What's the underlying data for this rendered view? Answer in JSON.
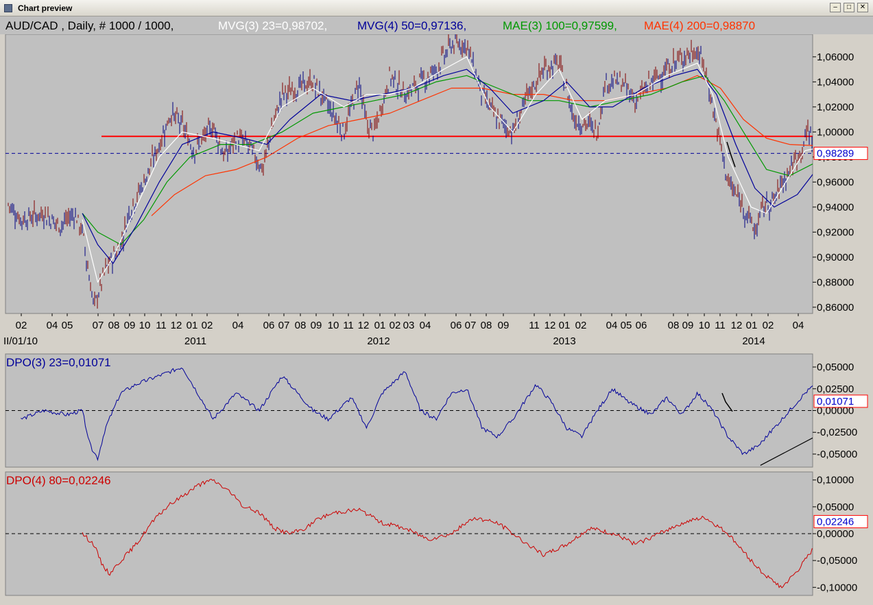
{
  "window": {
    "title": "Chart preview",
    "buttons": {
      "minimize": "–",
      "maximize": "□",
      "close": "✕"
    }
  },
  "chart_data": [
    {
      "type": "line",
      "panel": "price",
      "header": {
        "symbol": "AUD/CAD , Daily, # 1000 / 1000,",
        "legend": [
          {
            "text": "MVG(3) 23=0,98702,",
            "color": "#ffffff"
          },
          {
            "text": "MVG(4) 50=0,97136,",
            "color": "#000099"
          },
          {
            "text": "MAE(3) 100=0,97599,",
            "color": "#009900"
          },
          {
            "text": "MAE(4) 200=0,98870",
            "color": "#ff3300"
          }
        ]
      },
      "ylim": [
        0.855,
        1.078
      ],
      "yticks": [
        "1,06000",
        "1,04000",
        "1,02000",
        "1,00000",
        "0,98000",
        "0,96000",
        "0,94000",
        "0,92000",
        "0,90000",
        "0,88000",
        "0,86000"
      ],
      "current_value": "0,98289",
      "current_y": 0.98289,
      "support_level": 0.9965,
      "x_labels": [
        "02",
        "04",
        "05",
        "07",
        "08",
        "09",
        "10",
        "11",
        "12",
        "01",
        "02",
        "04",
        "06",
        "07",
        "08",
        "09",
        "10",
        "11",
        "12",
        "01",
        "02",
        "03",
        "04",
        "06",
        "07",
        "08",
        "09",
        "11",
        "12",
        "01",
        "02",
        "04",
        "05",
        "06",
        "08",
        "09",
        "10",
        "11",
        "12",
        "01",
        "02",
        "04"
      ],
      "year_labels": [
        "II/01/10",
        "2011",
        "2012",
        "2013",
        "2014"
      ],
      "price_path": [
        [
          0.0,
          0.945
        ],
        [
          0.02,
          0.93
        ],
        [
          0.05,
          0.935
        ],
        [
          0.07,
          0.925
        ],
        [
          0.09,
          0.935
        ],
        [
          0.1,
          0.92
        ],
        [
          0.11,
          0.88
        ],
        [
          0.115,
          0.86
        ],
        [
          0.12,
          0.87
        ],
        [
          0.13,
          0.89
        ],
        [
          0.14,
          0.9
        ],
        [
          0.15,
          0.91
        ],
        [
          0.16,
          0.935
        ],
        [
          0.18,
          0.96
        ],
        [
          0.2,
          0.99
        ],
        [
          0.215,
          1.015
        ],
        [
          0.23,
          1.005
        ],
        [
          0.245,
          0.985
        ],
        [
          0.27,
          1.005
        ],
        [
          0.285,
          0.98
        ],
        [
          0.3,
          0.995
        ],
        [
          0.315,
          0.99
        ],
        [
          0.325,
          0.98
        ],
        [
          0.335,
          0.97
        ],
        [
          0.345,
          1.0
        ],
        [
          0.36,
          1.03
        ],
        [
          0.38,
          1.035
        ],
        [
          0.4,
          1.04
        ],
        [
          0.42,
          1.02
        ],
        [
          0.44,
          1.0
        ],
        [
          0.46,
          1.04
        ],
        [
          0.47,
          1.005
        ],
        [
          0.48,
          1.0
        ],
        [
          0.5,
          1.045
        ],
        [
          0.52,
          1.03
        ],
        [
          0.54,
          1.04
        ],
        [
          0.56,
          1.05
        ],
        [
          0.58,
          1.07
        ],
        [
          0.6,
          1.07
        ],
        [
          0.62,
          1.03
        ],
        [
          0.64,
          1.01
        ],
        [
          0.66,
          1.0
        ],
        [
          0.68,
          1.03
        ],
        [
          0.7,
          1.05
        ],
        [
          0.72,
          1.055
        ],
        [
          0.74,
          1.01
        ],
        [
          0.76,
          1.005
        ],
        [
          0.77,
          1.0
        ],
        [
          0.78,
          1.04
        ],
        [
          0.8,
          1.04
        ],
        [
          0.82,
          1.025
        ],
        [
          0.84,
          1.04
        ],
        [
          0.86,
          1.05
        ],
        [
          0.88,
          1.06
        ],
        [
          0.9,
          1.065
        ],
        [
          0.91,
          1.05
        ],
        [
          0.92,
          1.02
        ],
        [
          0.93,
          0.99
        ],
        [
          0.94,
          0.96
        ],
        [
          0.955,
          0.945
        ],
        [
          0.965,
          0.935
        ],
        [
          0.975,
          0.92
        ],
        [
          0.985,
          0.94
        ],
        [
          1.0,
          0.945
        ],
        [
          1.01,
          0.96
        ],
        [
          1.02,
          0.97
        ],
        [
          1.035,
          0.985
        ],
        [
          1.045,
          1.003
        ],
        [
          1.055,
          0.985
        ]
      ],
      "mvg23_path": [
        [
          0.1,
          0.93
        ],
        [
          0.12,
          0.88
        ],
        [
          0.14,
          0.9
        ],
        [
          0.17,
          0.94
        ],
        [
          0.2,
          0.98
        ],
        [
          0.23,
          1.0
        ],
        [
          0.27,
          0.995
        ],
        [
          0.3,
          0.99
        ],
        [
          0.33,
          0.985
        ],
        [
          0.36,
          1.02
        ],
        [
          0.4,
          1.035
        ],
        [
          0.44,
          1.02
        ],
        [
          0.47,
          1.03
        ],
        [
          0.5,
          1.03
        ],
        [
          0.53,
          1.035
        ],
        [
          0.57,
          1.05
        ],
        [
          0.6,
          1.06
        ],
        [
          0.63,
          1.02
        ],
        [
          0.66,
          1.0
        ],
        [
          0.69,
          1.03
        ],
        [
          0.72,
          1.05
        ],
        [
          0.75,
          1.01
        ],
        [
          0.78,
          1.025
        ],
        [
          0.82,
          1.03
        ],
        [
          0.86,
          1.045
        ],
        [
          0.9,
          1.055
        ],
        [
          0.92,
          1.03
        ],
        [
          0.94,
          0.98
        ],
        [
          0.97,
          0.94
        ],
        [
          0.99,
          0.935
        ],
        [
          1.01,
          0.955
        ],
        [
          1.04,
          0.985
        ],
        [
          1.055,
          0.987
        ]
      ],
      "mvg50_path": [
        [
          0.1,
          0.935
        ],
        [
          0.12,
          0.91
        ],
        [
          0.14,
          0.895
        ],
        [
          0.17,
          0.925
        ],
        [
          0.2,
          0.96
        ],
        [
          0.23,
          0.99
        ],
        [
          0.27,
          1.0
        ],
        [
          0.31,
          0.995
        ],
        [
          0.34,
          0.99
        ],
        [
          0.37,
          1.01
        ],
        [
          0.41,
          1.03
        ],
        [
          0.45,
          1.025
        ],
        [
          0.49,
          1.03
        ],
        [
          0.53,
          1.035
        ],
        [
          0.57,
          1.045
        ],
        [
          0.6,
          1.05
        ],
        [
          0.63,
          1.035
        ],
        [
          0.66,
          1.015
        ],
        [
          0.7,
          1.025
        ],
        [
          0.73,
          1.04
        ],
        [
          0.76,
          1.02
        ],
        [
          0.79,
          1.02
        ],
        [
          0.83,
          1.035
        ],
        [
          0.87,
          1.045
        ],
        [
          0.9,
          1.05
        ],
        [
          0.925,
          1.03
        ],
        [
          0.95,
          0.99
        ],
        [
          0.975,
          0.955
        ],
        [
          1.0,
          0.94
        ],
        [
          1.03,
          0.95
        ],
        [
          1.055,
          0.97
        ]
      ],
      "mae100_path": [
        [
          0.1,
          0.935
        ],
        [
          0.12,
          0.92
        ],
        [
          0.15,
          0.91
        ],
        [
          0.18,
          0.93
        ],
        [
          0.21,
          0.96
        ],
        [
          0.24,
          0.98
        ],
        [
          0.28,
          0.99
        ],
        [
          0.32,
          0.99
        ],
        [
          0.36,
          1.0
        ],
        [
          0.4,
          1.015
        ],
        [
          0.44,
          1.02
        ],
        [
          0.48,
          1.025
        ],
        [
          0.52,
          1.03
        ],
        [
          0.56,
          1.04
        ],
        [
          0.6,
          1.045
        ],
        [
          0.64,
          1.035
        ],
        [
          0.68,
          1.025
        ],
        [
          0.72,
          1.025
        ],
        [
          0.76,
          1.02
        ],
        [
          0.8,
          1.025
        ],
        [
          0.84,
          1.03
        ],
        [
          0.88,
          1.04
        ],
        [
          0.91,
          1.045
        ],
        [
          0.935,
          1.025
        ],
        [
          0.96,
          1.0
        ],
        [
          0.99,
          0.97
        ],
        [
          1.02,
          0.965
        ],
        [
          1.055,
          0.976
        ]
      ],
      "mae200_path": [
        [
          0.19,
          0.933
        ],
        [
          0.22,
          0.95
        ],
        [
          0.26,
          0.965
        ],
        [
          0.3,
          0.97
        ],
        [
          0.34,
          0.98
        ],
        [
          0.38,
          0.995
        ],
        [
          0.42,
          1.005
        ],
        [
          0.46,
          1.01
        ],
        [
          0.5,
          1.015
        ],
        [
          0.54,
          1.025
        ],
        [
          0.58,
          1.035
        ],
        [
          0.62,
          1.035
        ],
        [
          0.66,
          1.03
        ],
        [
          0.7,
          1.03
        ],
        [
          0.74,
          1.025
        ],
        [
          0.78,
          1.025
        ],
        [
          0.82,
          1.03
        ],
        [
          0.86,
          1.035
        ],
        [
          0.9,
          1.045
        ],
        [
          0.93,
          1.035
        ],
        [
          0.96,
          1.01
        ],
        [
          0.99,
          0.995
        ],
        [
          1.02,
          0.99
        ],
        [
          1.055,
          0.989
        ]
      ]
    },
    {
      "type": "line",
      "panel": "oscillator",
      "label": "DPO(3) 23=0,01071",
      "label_color": "#000099",
      "ylim": [
        -0.065,
        0.065
      ],
      "yticks": [
        "0,05000",
        "0,02500",
        "0,00000",
        "-0,02500",
        "-0,05000"
      ],
      "current_value": "0,01071",
      "current_y": 0.01071,
      "series_color": "#000099",
      "path": [
        [
          0.02,
          -0.01
        ],
        [
          0.05,
          0.0
        ],
        [
          0.08,
          -0.005
        ],
        [
          0.1,
          0.0
        ],
        [
          0.11,
          -0.04
        ],
        [
          0.12,
          -0.055
        ],
        [
          0.13,
          -0.02
        ],
        [
          0.15,
          0.02
        ],
        [
          0.17,
          0.03
        ],
        [
          0.2,
          0.04
        ],
        [
          0.23,
          0.05
        ],
        [
          0.25,
          0.02
        ],
        [
          0.27,
          -0.01
        ],
        [
          0.3,
          0.02
        ],
        [
          0.33,
          0.0
        ],
        [
          0.36,
          0.04
        ],
        [
          0.38,
          0.02
        ],
        [
          0.4,
          0.0
        ],
        [
          0.42,
          -0.01
        ],
        [
          0.45,
          0.015
        ],
        [
          0.47,
          -0.02
        ],
        [
          0.49,
          0.02
        ],
        [
          0.52,
          0.045
        ],
        [
          0.54,
          0.0
        ],
        [
          0.56,
          -0.01
        ],
        [
          0.58,
          0.02
        ],
        [
          0.6,
          0.025
        ],
        [
          0.62,
          -0.02
        ],
        [
          0.64,
          -0.03
        ],
        [
          0.66,
          -0.01
        ],
        [
          0.69,
          0.03
        ],
        [
          0.71,
          0.01
        ],
        [
          0.73,
          -0.02
        ],
        [
          0.75,
          -0.03
        ],
        [
          0.77,
          0.0
        ],
        [
          0.79,
          0.025
        ],
        [
          0.81,
          0.01
        ],
        [
          0.84,
          -0.005
        ],
        [
          0.86,
          0.015
        ],
        [
          0.88,
          -0.005
        ],
        [
          0.9,
          0.02
        ],
        [
          0.92,
          0.0
        ],
        [
          0.94,
          -0.03
        ],
        [
          0.96,
          -0.05
        ],
        [
          0.98,
          -0.04
        ],
        [
          1.0,
          -0.02
        ],
        [
          1.02,
          0.0
        ],
        [
          1.04,
          0.02
        ],
        [
          1.06,
          0.035
        ],
        [
          1.075,
          0.02
        ]
      ],
      "trendline": [
        [
          0.982,
          -0.063
        ],
        [
          1.23,
          0.052
        ]
      ]
    },
    {
      "type": "line",
      "panel": "oscillator",
      "label": "DPO(4) 80=0,02246",
      "label_color": "#cc0000",
      "ylim": [
        -0.115,
        0.115
      ],
      "yticks": [
        "0,10000",
        "0,05000",
        "0,00000",
        "-0,05000",
        "-0,10000"
      ],
      "current_value": "0,02246",
      "current_y": 0.02246,
      "series_color": "#cc0000",
      "path": [
        [
          0.1,
          0.0
        ],
        [
          0.115,
          -0.02
        ],
        [
          0.125,
          -0.055
        ],
        [
          0.135,
          -0.075
        ],
        [
          0.15,
          -0.05
        ],
        [
          0.17,
          -0.02
        ],
        [
          0.19,
          0.02
        ],
        [
          0.21,
          0.05
        ],
        [
          0.23,
          0.07
        ],
        [
          0.25,
          0.09
        ],
        [
          0.27,
          0.1
        ],
        [
          0.29,
          0.08
        ],
        [
          0.31,
          0.05
        ],
        [
          0.33,
          0.04
        ],
        [
          0.35,
          0.01
        ],
        [
          0.37,
          0.0
        ],
        [
          0.39,
          0.01
        ],
        [
          0.41,
          0.03
        ],
        [
          0.43,
          0.04
        ],
        [
          0.46,
          0.045
        ],
        [
          0.49,
          0.02
        ],
        [
          0.52,
          0.01
        ],
        [
          0.55,
          -0.01
        ],
        [
          0.58,
          0.0
        ],
        [
          0.61,
          0.03
        ],
        [
          0.64,
          0.02
        ],
        [
          0.67,
          -0.01
        ],
        [
          0.7,
          -0.04
        ],
        [
          0.73,
          -0.02
        ],
        [
          0.76,
          0.01
        ],
        [
          0.79,
          0.0
        ],
        [
          0.82,
          -0.02
        ],
        [
          0.85,
          0.0
        ],
        [
          0.88,
          0.02
        ],
        [
          0.91,
          0.03
        ],
        [
          0.94,
          0.0
        ],
        [
          0.97,
          -0.05
        ],
        [
          0.99,
          -0.08
        ],
        [
          1.01,
          -0.1
        ],
        [
          1.03,
          -0.07
        ],
        [
          1.05,
          -0.03
        ],
        [
          1.07,
          0.02
        ],
        [
          1.085,
          0.04
        ],
        [
          1.1,
          0.022
        ]
      ]
    }
  ]
}
